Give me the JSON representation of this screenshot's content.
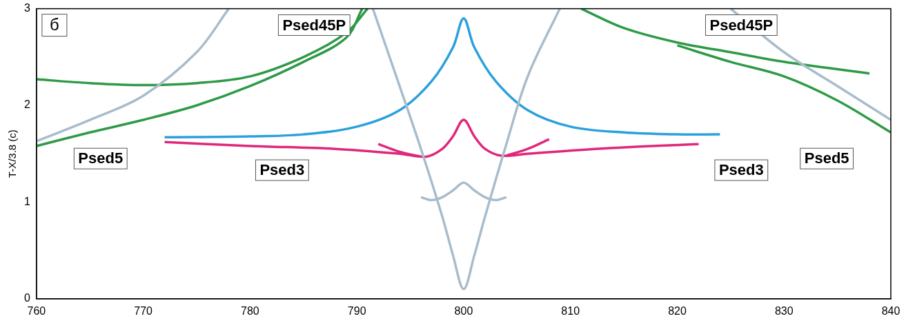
{
  "chart_data": {
    "type": "line",
    "panel": "б",
    "y_label": "T-X/3.8 (c)",
    "xlim": [
      760,
      840
    ],
    "xticks": [
      760,
      770,
      780,
      790,
      800,
      810,
      820,
      830,
      840
    ],
    "ylim": [
      0,
      3
    ],
    "yticks": [
      0,
      1,
      2,
      3
    ],
    "grid": false,
    "legend": false,
    "series": [
      {
        "color": "#a8bccb",
        "x": [
          760,
          765,
          770,
          775,
          778
        ],
        "values": [
          1.63,
          1.85,
          2.1,
          2.55,
          3.0
        ]
      },
      {
        "color": "#a8bccb",
        "x": [
          791.5,
          794,
          796,
          798,
          799,
          800,
          801,
          802,
          804,
          806,
          809
        ],
        "values": [
          3.0,
          2.2,
          1.55,
          0.85,
          0.45,
          0.1,
          0.45,
          0.85,
          1.6,
          2.3,
          3.0
        ]
      },
      {
        "color": "#a8bccb",
        "x": [
          796,
          797,
          798,
          799,
          800,
          801,
          802,
          803,
          804
        ],
        "values": [
          1.05,
          1.02,
          1.05,
          1.12,
          1.2,
          1.12,
          1.05,
          1.02,
          1.05
        ]
      },
      {
        "color": "#a8bccb",
        "x": [
          825,
          830,
          835,
          840
        ],
        "values": [
          3.0,
          2.55,
          2.2,
          1.85
        ]
      },
      {
        "color": "#2aa0dc",
        "x": [
          772,
          780,
          785,
          790,
          794,
          797,
          799,
          800,
          801,
          803,
          806,
          810,
          815,
          820,
          824
        ],
        "values": [
          1.67,
          1.68,
          1.7,
          1.78,
          1.95,
          2.25,
          2.6,
          2.9,
          2.6,
          2.25,
          1.95,
          1.78,
          1.72,
          1.7,
          1.7
        ]
      },
      {
        "color": "#e0287a",
        "x": [
          772,
          780,
          788,
          794,
          796.5,
          798,
          799,
          800,
          801,
          802,
          803.5,
          806,
          814,
          822
        ],
        "values": [
          1.62,
          1.58,
          1.55,
          1.5,
          1.47,
          1.55,
          1.68,
          1.85,
          1.68,
          1.55,
          1.48,
          1.5,
          1.56,
          1.6
        ]
      },
      {
        "color": "#e0287a",
        "x": [
          792,
          794,
          796
        ],
        "values": [
          1.6,
          1.52,
          1.47
        ]
      },
      {
        "color": "#e0287a",
        "x": [
          804,
          806,
          808
        ],
        "values": [
          1.48,
          1.55,
          1.65
        ]
      },
      {
        "color": "#2e9a47",
        "x": [
          760,
          765,
          770,
          775,
          780,
          785,
          789,
          791
        ],
        "values": [
          2.27,
          2.23,
          2.21,
          2.23,
          2.3,
          2.5,
          2.75,
          3.0
        ]
      },
      {
        "color": "#2e9a47",
        "x": [
          760,
          765,
          770,
          775,
          780,
          785,
          789,
          790.5
        ],
        "values": [
          1.58,
          1.72,
          1.85,
          2.0,
          2.2,
          2.45,
          2.7,
          3.0
        ]
      },
      {
        "color": "#2e9a47",
        "x": [
          811,
          815,
          820,
          825,
          830,
          838
        ],
        "values": [
          3.0,
          2.8,
          2.65,
          2.55,
          2.45,
          2.33
        ]
      },
      {
        "color": "#2e9a47",
        "x": [
          820,
          825,
          830,
          835,
          840
        ],
        "values": [
          2.62,
          2.45,
          2.3,
          2.05,
          1.72
        ]
      }
    ],
    "annotations": [
      {
        "text": "Psed45P",
        "x": 786,
        "y": 2.83
      },
      {
        "text": "Psed45P",
        "x": 826,
        "y": 2.83
      },
      {
        "text": "Psed5",
        "x": 766,
        "y": 1.45
      },
      {
        "text": "Psed5",
        "x": 834,
        "y": 1.45
      },
      {
        "text": "Psed3",
        "x": 783,
        "y": 1.33
      },
      {
        "text": "Psed3",
        "x": 826,
        "y": 1.33
      }
    ]
  }
}
